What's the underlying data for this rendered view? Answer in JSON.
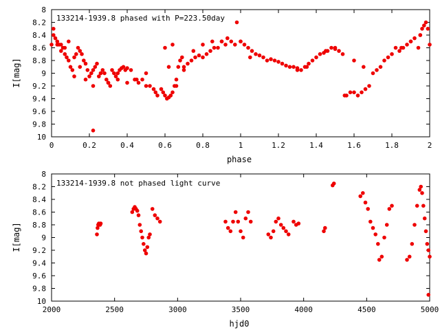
{
  "colors": {
    "points": "#ee0000",
    "axes": "#000000",
    "background": "#ffffff"
  },
  "chart_data": [
    {
      "type": "scatter",
      "title": "133214-1939.8 phased with P=223.50day",
      "xlabel": "phase",
      "ylabel": "I[mag]",
      "xlim": [
        0,
        2
      ],
      "ylim": [
        8,
        10
      ],
      "y_inverted": true,
      "grid": false,
      "xticks": [
        0,
        0.2,
        0.4,
        0.6,
        0.8,
        1,
        1.2,
        1.4,
        1.6,
        1.8,
        2
      ],
      "xtick_labels": [
        "0",
        "0.2",
        "0.4",
        "0.6",
        "0.8",
        "1",
        "1.2",
        "1.4",
        "1.6",
        "1.8",
        "2"
      ],
      "yticks": [
        8,
        8.2,
        8.4,
        8.6,
        8.8,
        9,
        9.2,
        9.4,
        9.6,
        9.8,
        10
      ],
      "ytick_labels": [
        "8",
        "8.2",
        "8.4",
        "8.6",
        "8.8",
        "9",
        "9.2",
        "9.4",
        "9.6",
        "9.8",
        "10"
      ],
      "series": [
        {
          "x": [
            0.0,
            0.01,
            0.02,
            0.03,
            0.04,
            0.05,
            0.06,
            0.07,
            0.08,
            0.09,
            0.1,
            0.11,
            0.12,
            0.13,
            0.14,
            0.15,
            0.16,
            0.17,
            0.18,
            0.19,
            0.2,
            0.21,
            0.22,
            0.23,
            0.24,
            0.25,
            0.26,
            0.27,
            0.28,
            0.29,
            0.3,
            0.31,
            0.32,
            0.33,
            0.34,
            0.35,
            0.36,
            0.37,
            0.38,
            0.39,
            0.4,
            0.42,
            0.44,
            0.46,
            0.48,
            0.5,
            0.52,
            0.54,
            0.55,
            0.56,
            0.58,
            0.59,
            0.6,
            0.61,
            0.62,
            0.63,
            0.64,
            0.65,
            0.66,
            0.67,
            0.68,
            0.69,
            0.7,
            0.72,
            0.74,
            0.76,
            0.78,
            0.8,
            0.82,
            0.84,
            0.86,
            0.88,
            0.9,
            0.92,
            0.93,
            0.95,
            0.97,
            0.98,
            1.0,
            1.02,
            1.04,
            1.06,
            1.08,
            1.1,
            1.12,
            1.14,
            1.16,
            1.18,
            1.2,
            1.22,
            1.24,
            1.26,
            1.28,
            1.3,
            1.32,
            1.34,
            1.36,
            1.38,
            1.4,
            1.42,
            1.44,
            1.46,
            1.48,
            1.5,
            1.52,
            1.54,
            1.55,
            1.56,
            1.58,
            1.6,
            1.62,
            1.64,
            1.66,
            1.68,
            1.7,
            1.72,
            1.74,
            1.76,
            1.78,
            1.8,
            1.82,
            1.84,
            1.86,
            1.88,
            1.9,
            1.92,
            1.94,
            1.95,
            1.96,
            1.97,
            1.98,
            1.99,
            2.0,
            0.01,
            0.03,
            0.05,
            0.07,
            0.09,
            0.12,
            0.15,
            0.18,
            0.22,
            0.26,
            0.3,
            0.35,
            0.4,
            0.45,
            0.5,
            0.6,
            0.62,
            0.64,
            0.66,
            0.7,
            0.75,
            0.8,
            0.85,
            0.9,
            1.0,
            1.05,
            1.3,
            1.35,
            1.45,
            1.5,
            1.6,
            1.65,
            1.85,
            1.9,
            1.95,
            0.22
          ],
          "y": [
            8.55,
            8.3,
            8.45,
            8.5,
            8.55,
            8.55,
            8.6,
            8.7,
            8.75,
            8.8,
            8.9,
            8.95,
            9.05,
            8.7,
            8.6,
            8.65,
            8.7,
            8.8,
            8.85,
            8.95,
            9.05,
            9.0,
            8.95,
            8.9,
            8.85,
            9.05,
            9.0,
            8.95,
            9.0,
            9.1,
            9.15,
            9.2,
            8.95,
            9.0,
            9.05,
            9.0,
            8.95,
            8.92,
            8.9,
            8.95,
            8.92,
            8.95,
            9.1,
            9.15,
            9.1,
            9.0,
            9.2,
            9.25,
            9.3,
            9.35,
            9.25,
            9.3,
            9.35,
            9.4,
            9.38,
            9.35,
            9.3,
            9.2,
            9.1,
            8.9,
            8.8,
            8.75,
            8.9,
            8.85,
            8.8,
            8.75,
            8.72,
            8.75,
            8.7,
            8.65,
            8.6,
            8.6,
            8.5,
            8.55,
            8.45,
            8.5,
            8.55,
            8.2,
            8.5,
            8.55,
            8.6,
            8.65,
            8.7,
            8.72,
            8.75,
            8.8,
            8.78,
            8.8,
            8.82,
            8.85,
            8.88,
            8.9,
            8.9,
            8.92,
            8.95,
            8.9,
            8.85,
            8.8,
            8.75,
            8.7,
            8.68,
            8.65,
            8.6,
            8.62,
            8.65,
            8.7,
            9.35,
            9.35,
            9.3,
            9.3,
            9.35,
            9.3,
            9.25,
            9.2,
            9.0,
            8.95,
            8.9,
            8.8,
            8.75,
            8.7,
            8.6,
            8.65,
            8.6,
            8.55,
            8.5,
            8.45,
            8.6,
            8.4,
            8.3,
            8.25,
            8.2,
            8.3,
            8.55,
            8.4,
            8.55,
            8.65,
            8.6,
            8.5,
            8.75,
            8.9,
            9.1,
            9.2,
            9.0,
            9.15,
            9.1,
            9.15,
            9.1,
            9.2,
            8.6,
            8.9,
            8.55,
            9.2,
            8.95,
            8.65,
            8.55,
            8.5,
            8.5,
            8.5,
            8.75,
            8.95,
            8.9,
            8.65,
            8.6,
            8.8,
            8.9,
            8.6,
            8.5,
            8.4,
            9.9
          ]
        }
      ]
    },
    {
      "type": "scatter",
      "title": "133214-1939.8 not phased light curve",
      "xlabel": "hjd0",
      "ylabel": "I[mag]",
      "xlim": [
        2000,
        5000
      ],
      "ylim": [
        8,
        10
      ],
      "y_inverted": true,
      "grid": false,
      "xticks": [
        2000,
        2500,
        3000,
        3500,
        4000,
        4500,
        5000
      ],
      "xtick_labels": [
        "2000",
        "2500",
        "3000",
        "3500",
        "4000",
        "4500",
        "5000"
      ],
      "yticks": [
        8,
        8.2,
        8.4,
        8.6,
        8.8,
        9,
        9.2,
        9.4,
        9.6,
        9.8,
        10
      ],
      "ytick_labels": [
        "8",
        "8.2",
        "8.4",
        "8.6",
        "8.8",
        "9",
        "9.2",
        "9.4",
        "9.6",
        "9.8",
        "10"
      ],
      "series": [
        {
          "x": [
            2360,
            2365,
            2370,
            2375,
            2380,
            2385,
            2390,
            2640,
            2650,
            2660,
            2670,
            2680,
            2690,
            2700,
            2710,
            2720,
            2730,
            2740,
            2750,
            2760,
            2770,
            2780,
            2800,
            2820,
            2840,
            2860,
            3380,
            3400,
            3420,
            3440,
            3460,
            3480,
            3500,
            3520,
            3540,
            3560,
            3580,
            3720,
            3740,
            3760,
            3780,
            3800,
            3820,
            3840,
            3860,
            3880,
            3920,
            3940,
            3960,
            4160,
            4170,
            4230,
            4240,
            4450,
            4470,
            4490,
            4510,
            4530,
            4550,
            4570,
            4590,
            4600,
            4620,
            4640,
            4660,
            4680,
            4700,
            4820,
            4840,
            4860,
            4880,
            4900,
            4920,
            4930,
            4940,
            4950,
            4960,
            4970,
            4980,
            4990,
            5000,
            4990
          ],
          "y": [
            8.95,
            8.85,
            8.8,
            8.78,
            8.8,
            8.8,
            8.78,
            8.6,
            8.55,
            8.52,
            8.55,
            8.58,
            8.65,
            8.8,
            8.9,
            9.0,
            9.1,
            9.2,
            9.25,
            9.15,
            9.0,
            8.95,
            8.55,
            8.65,
            8.7,
            8.75,
            8.75,
            8.85,
            8.9,
            8.75,
            8.6,
            8.75,
            8.9,
            9.0,
            8.7,
            8.6,
            8.75,
            8.95,
            9.0,
            8.9,
            8.75,
            8.7,
            8.8,
            8.85,
            8.9,
            8.95,
            8.75,
            8.8,
            8.78,
            8.9,
            8.85,
            8.18,
            8.15,
            8.35,
            8.3,
            8.45,
            8.55,
            8.75,
            8.85,
            8.95,
            9.1,
            9.35,
            9.3,
            9.0,
            8.8,
            8.55,
            8.5,
            9.35,
            9.3,
            9.1,
            8.8,
            8.5,
            8.25,
            8.2,
            8.3,
            8.5,
            8.7,
            8.9,
            9.1,
            9.2,
            9.3,
            9.9
          ]
        }
      ]
    }
  ]
}
